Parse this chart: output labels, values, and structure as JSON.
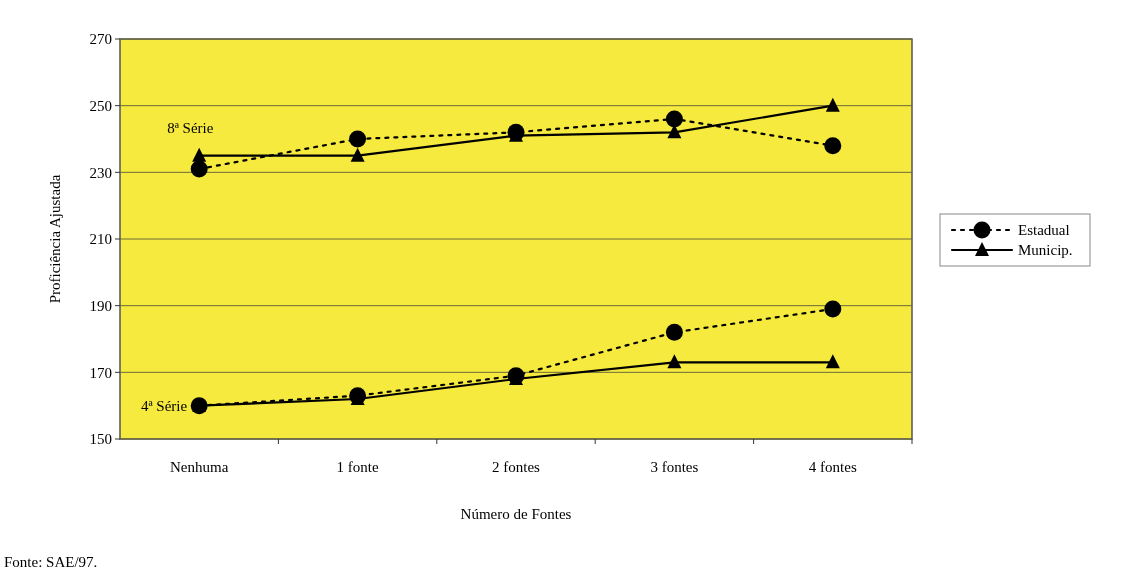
{
  "chart_data": {
    "type": "line",
    "xlabel": "Número de Fontes",
    "ylabel": "Proficiência Ajustada",
    "categories": [
      "Nenhuma",
      "1 fonte",
      "2 fontes",
      "3 fontes",
      "4 fontes"
    ],
    "ylim": [
      150,
      270
    ],
    "yticks": [
      150,
      170,
      190,
      210,
      230,
      250,
      270
    ],
    "grid": "y",
    "legend": "right",
    "series": [
      {
        "name": "Estadual",
        "color": "#000000",
        "line_style": "dotted",
        "marker": "circle",
        "values": [
          231,
          240,
          242,
          246,
          238
        ]
      },
      {
        "name": "Municip.",
        "color": "#000000",
        "line_style": "solid",
        "marker": "triangle",
        "values": [
          235,
          235,
          241,
          242,
          250
        ]
      },
      {
        "color": "#000000",
        "line_style": "dotted",
        "marker": "circle",
        "values": [
          160,
          163,
          169,
          182,
          189
        ]
      },
      {
        "color": "#000000",
        "line_style": "solid",
        "marker": "triangle",
        "values": [
          160,
          162,
          168,
          173,
          173
        ]
      }
    ],
    "annotations": [
      "8ª Série",
      "4ª Série",
      "Fonte: SAE/97."
    ]
  }
}
